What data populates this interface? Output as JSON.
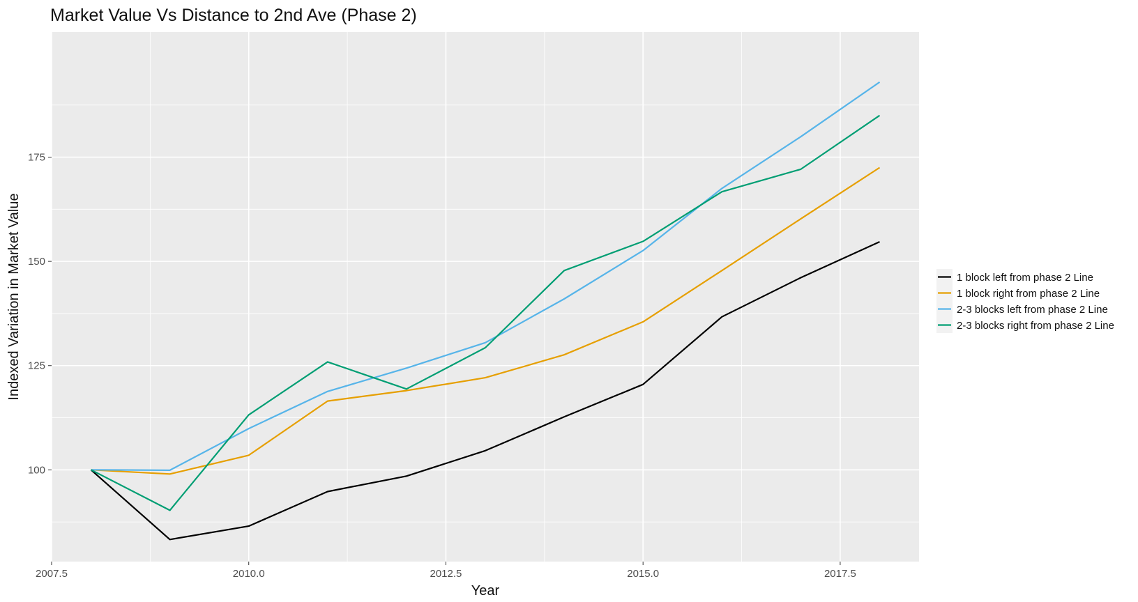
{
  "chart_data": {
    "type": "line",
    "title": "Market Value Vs Distance to 2nd Ave (Phase 2)",
    "xlabel": "Year",
    "ylabel": "Indexed Variation in Market Value",
    "xlim": [
      2007.5,
      2018.5
    ],
    "ylim": [
      78,
      205
    ],
    "x_ticks": [
      2007.5,
      2010.0,
      2012.5,
      2015.0,
      2017.5
    ],
    "y_ticks": [
      100,
      125,
      150,
      175
    ],
    "grid": true,
    "legend_position": "right",
    "x": [
      2008,
      2009,
      2010,
      2011,
      2012,
      2013,
      2014,
      2015,
      2016,
      2017,
      2018
    ],
    "series": [
      {
        "name": "1 block left from phase 2 Line",
        "color": "#000000",
        "values": [
          100,
          83.3,
          86.5,
          94.8,
          98.5,
          104.6,
          112.7,
          120.5,
          136.7,
          146.1,
          154.7
        ]
      },
      {
        "name": "1 block right from phase 2 Line",
        "color": "#E69F00",
        "values": [
          100,
          99.0,
          103.5,
          116.5,
          119.0,
          122.1,
          127.6,
          135.5,
          147.8,
          160.2,
          172.5
        ]
      },
      {
        "name": "2-3 blocks left from phase 2 Line",
        "color": "#56B4E9",
        "values": [
          100,
          99.9,
          109.9,
          118.8,
          124.4,
          130.5,
          141.0,
          152.6,
          167.5,
          179.9,
          193.0
        ]
      },
      {
        "name": "2-3 blocks right from phase 2 Line",
        "color": "#009E73",
        "values": [
          100,
          90.3,
          113.2,
          125.9,
          119.4,
          129.3,
          147.8,
          154.8,
          166.7,
          172.1,
          185.0
        ]
      }
    ]
  }
}
